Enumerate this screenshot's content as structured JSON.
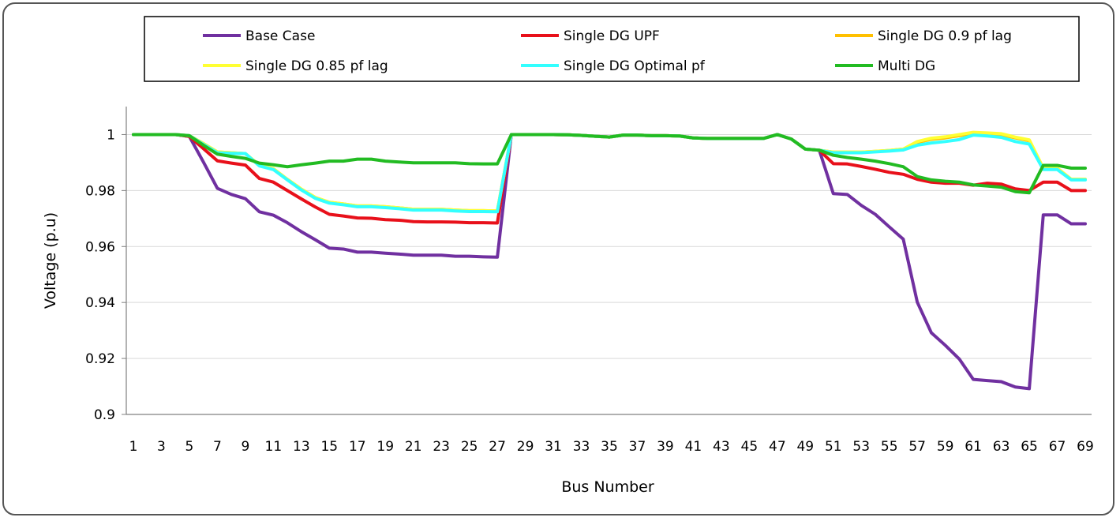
{
  "chart_data": {
    "type": "line",
    "xlabel": "Bus Number",
    "ylabel": "Voltage (p.u)",
    "ylim": [
      0.9,
      1.01
    ],
    "yticks": [
      0.9,
      0.92,
      0.94,
      0.96,
      0.98,
      1
    ],
    "ytick_labels": [
      "0.9",
      "0.92",
      "0.94",
      "0.96",
      "0.98",
      "1"
    ],
    "xlim": [
      1,
      69
    ],
    "xtick_labels": [
      "1",
      "3",
      "5",
      "7",
      "9",
      "11",
      "13",
      "15",
      "17",
      "19",
      "21",
      "23",
      "25",
      "27",
      "29",
      "31",
      "33",
      "35",
      "37",
      "39",
      "41",
      "43",
      "45",
      "47",
      "49",
      "51",
      "53",
      "55",
      "57",
      "59",
      "61",
      "63",
      "65",
      "67",
      "69"
    ],
    "grid": "horizontal",
    "legend_position": "top",
    "x": [
      1,
      2,
      3,
      4,
      5,
      6,
      7,
      8,
      9,
      10,
      11,
      12,
      13,
      14,
      15,
      16,
      17,
      18,
      19,
      20,
      21,
      22,
      23,
      24,
      25,
      26,
      27,
      28,
      29,
      30,
      31,
      32,
      33,
      34,
      35,
      36,
      37,
      38,
      39,
      40,
      41,
      42,
      43,
      44,
      45,
      46,
      47,
      48,
      49,
      50,
      51,
      52,
      53,
      54,
      55,
      56,
      57,
      58,
      59,
      60,
      61,
      62,
      63,
      64,
      65,
      66,
      67,
      68,
      69
    ],
    "series": [
      {
        "name": "Base Case",
        "color": "#7030a0",
        "values": [
          1,
          1,
          1,
          1,
          0.9993,
          0.9902,
          0.9808,
          0.9786,
          0.9771,
          0.9724,
          0.9712,
          0.9685,
          0.9653,
          0.9624,
          0.9594,
          0.9591,
          0.958,
          0.958,
          0.9576,
          0.9573,
          0.9569,
          0.9569,
          0.9569,
          0.9565,
          0.9565,
          0.9563,
          0.9562,
          1,
          1,
          1,
          1,
          0.9999,
          0.9997,
          0.9994,
          0.9991,
          0.9998,
          0.9998,
          0.9996,
          0.9996,
          0.9995,
          0.9988,
          0.9986,
          0.9986,
          0.9986,
          0.9986,
          0.9986,
          1,
          0.9984,
          0.9948,
          0.9944,
          0.9789,
          0.9786,
          0.9747,
          0.9715,
          0.967,
          0.9626,
          0.9401,
          0.9292,
          0.9247,
          0.9198,
          0.9125,
          0.9121,
          0.9117,
          0.9098,
          0.9092,
          0.9713,
          0.9713,
          0.9681,
          0.9681
        ]
      },
      {
        "name": "Single DG UPF",
        "color": "#e8101a",
        "values": [
          1,
          1,
          1,
          1,
          0.9993,
          0.995,
          0.9906,
          0.9898,
          0.9891,
          0.9843,
          0.983,
          0.98,
          0.977,
          0.9741,
          0.9715,
          0.9709,
          0.9702,
          0.9701,
          0.9696,
          0.9694,
          0.9689,
          0.9688,
          0.9688,
          0.9687,
          0.9685,
          0.9685,
          0.9684,
          1,
          1,
          1,
          1,
          0.9999,
          0.9997,
          0.9994,
          0.9991,
          0.9998,
          0.9998,
          0.9996,
          0.9996,
          0.9995,
          0.9988,
          0.9986,
          0.9986,
          0.9986,
          0.9986,
          0.9986,
          1,
          0.9984,
          0.9948,
          0.9944,
          0.9896,
          0.9895,
          0.9886,
          0.9876,
          0.9865,
          0.9858,
          0.984,
          0.983,
          0.9826,
          0.9826,
          0.9819,
          0.9826,
          0.9823,
          0.9806,
          0.98,
          0.983,
          0.983,
          0.98,
          0.98
        ]
      },
      {
        "name": "Single DG 0.9 pf lag",
        "color": "#ffc000",
        "values": [
          1,
          1,
          1,
          1,
          0.9996,
          0.9968,
          0.9938,
          0.9935,
          0.9932,
          0.989,
          0.9878,
          0.984,
          0.9805,
          0.9775,
          0.9758,
          0.9752,
          0.9745,
          0.9745,
          0.9742,
          0.9738,
          0.9733,
          0.9733,
          0.9733,
          0.973,
          0.9728,
          0.9728,
          0.9727,
          1,
          1,
          1,
          1,
          0.9999,
          0.9997,
          0.9994,
          0.9991,
          0.9998,
          0.9998,
          0.9996,
          0.9996,
          0.9995,
          0.9988,
          0.9986,
          0.9986,
          0.9986,
          0.9986,
          0.9986,
          1,
          0.9984,
          0.9948,
          0.9944,
          0.9937,
          0.9937,
          0.9937,
          0.994,
          0.9943,
          0.9948,
          0.9972,
          0.9983,
          0.9988,
          0.9996,
          1.0005,
          1.0003,
          1.0,
          0.9988,
          0.9978,
          0.988,
          0.988,
          0.984,
          0.984
        ]
      },
      {
        "name": "Single DG 0.85 pf lag",
        "color": "#ffff33",
        "values": [
          1,
          1,
          1,
          1,
          0.9996,
          0.9968,
          0.9938,
          0.9935,
          0.9932,
          0.989,
          0.9878,
          0.984,
          0.9805,
          0.9775,
          0.9758,
          0.9752,
          0.9745,
          0.9745,
          0.9742,
          0.9738,
          0.9733,
          0.9733,
          0.9733,
          0.973,
          0.9728,
          0.9728,
          0.9727,
          1,
          1,
          1,
          1,
          0.9999,
          0.9997,
          0.9994,
          0.9991,
          0.9998,
          0.9998,
          0.9996,
          0.9996,
          0.9995,
          0.9988,
          0.9986,
          0.9986,
          0.9986,
          0.9986,
          0.9986,
          1,
          0.9984,
          0.9948,
          0.9944,
          0.9937,
          0.9937,
          0.9937,
          0.994,
          0.9943,
          0.9948,
          0.9975,
          0.9987,
          0.9992,
          1.0,
          1.0008,
          1.0006,
          1.0003,
          0.9991,
          0.9981,
          0.988,
          0.988,
          0.984,
          0.984
        ]
      },
      {
        "name": "Single DG Optimal pf",
        "color": "#33ffff",
        "values": [
          1,
          1,
          1,
          1,
          0.9996,
          0.9965,
          0.9935,
          0.9933,
          0.9932,
          0.9888,
          0.9875,
          0.9838,
          0.9802,
          0.9772,
          0.9755,
          0.9749,
          0.9742,
          0.9742,
          0.9739,
          0.9735,
          0.973,
          0.973,
          0.973,
          0.9727,
          0.9725,
          0.9725,
          0.9724,
          1,
          1,
          1,
          1,
          0.9999,
          0.9997,
          0.9994,
          0.9991,
          0.9998,
          0.9998,
          0.9996,
          0.9996,
          0.9995,
          0.9988,
          0.9986,
          0.9986,
          0.9986,
          0.9986,
          0.9986,
          1,
          0.9984,
          0.9948,
          0.9944,
          0.9935,
          0.9935,
          0.9935,
          0.9938,
          0.9941,
          0.9945,
          0.9962,
          0.997,
          0.9975,
          0.9982,
          0.9998,
          0.9995,
          0.999,
          0.9975,
          0.9966,
          0.9875,
          0.9875,
          0.9838,
          0.9838
        ]
      },
      {
        "name": "Multi DG",
        "color": "#22bb22",
        "values": [
          1,
          1,
          1,
          1,
          0.9996,
          0.9962,
          0.993,
          0.9922,
          0.9915,
          0.9898,
          0.9892,
          0.9885,
          0.9892,
          0.9898,
          0.9905,
          0.9905,
          0.9912,
          0.9912,
          0.9905,
          0.9902,
          0.9899,
          0.9899,
          0.9899,
          0.9899,
          0.9896,
          0.9895,
          0.9895,
          1,
          1,
          1,
          1,
          0.9999,
          0.9997,
          0.9994,
          0.9991,
          0.9998,
          0.9998,
          0.9996,
          0.9996,
          0.9995,
          0.9988,
          0.9986,
          0.9986,
          0.9986,
          0.9986,
          0.9986,
          1,
          0.9984,
          0.9948,
          0.9944,
          0.9926,
          0.9918,
          0.9912,
          0.9905,
          0.9896,
          0.9885,
          0.985,
          0.9838,
          0.9833,
          0.983,
          0.982,
          0.9816,
          0.9812,
          0.9796,
          0.9792,
          0.989,
          0.989,
          0.988,
          0.988
        ]
      }
    ]
  }
}
